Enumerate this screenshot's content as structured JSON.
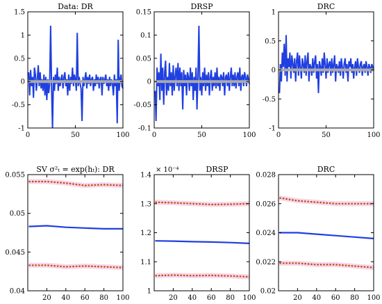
{
  "chart_data": [
    {
      "type": "line",
      "title": "Data: DR",
      "xlim": [
        0,
        100
      ],
      "ylim": [
        -1,
        1.5
      ],
      "xticks": [
        "0",
        "50",
        "100"
      ],
      "yticks": [
        "-1",
        "-0.5",
        "0",
        "0.5",
        "1",
        "1.5"
      ],
      "series": [
        {
          "color": "#1f3fe0",
          "style": "solid",
          "x": [
            1,
            2,
            3,
            4,
            5,
            6,
            7,
            8,
            9,
            10,
            11,
            12,
            13,
            14,
            15,
            16,
            17,
            18,
            19,
            20,
            21,
            22,
            23,
            24,
            25,
            26,
            27,
            28,
            29,
            30,
            31,
            32,
            33,
            34,
            35,
            36,
            37,
            38,
            39,
            40,
            41,
            42,
            43,
            44,
            45,
            46,
            47,
            48,
            49,
            50,
            51,
            52,
            53,
            54,
            55,
            56,
            57,
            58,
            59,
            60,
            61,
            62,
            63,
            64,
            65,
            66,
            67,
            68,
            69,
            70,
            71,
            72,
            73,
            74,
            75,
            76,
            77,
            78,
            79,
            80,
            81,
            82,
            83,
            84,
            85,
            86,
            87,
            88,
            89,
            90,
            91,
            92,
            93,
            94,
            95,
            96,
            97,
            98,
            99,
            100
          ],
          "y": [
            0.2,
            -0.3,
            0.25,
            -0.1,
            0.1,
            -0.35,
            0.3,
            0.15,
            -0.2,
            0.05,
            0.35,
            -0.1,
            0.2,
            -0.15,
            0.05,
            -0.2,
            0.15,
            -0.3,
            0.1,
            -0.4,
            0.05,
            -0.25,
            -0.05,
            1.2,
            -0.15,
            -1.0,
            0.1,
            -0.2,
            0.15,
            -0.05,
            0.3,
            -0.2,
            0.1,
            -0.1,
            0.05,
            0.15,
            -0.15,
            0.1,
            0.2,
            -0.1,
            0.05,
            -0.3,
            0.15,
            -0.2,
            0.1,
            -0.05,
            0.3,
            -0.1,
            0.15,
            0.05,
            -0.2,
            1.05,
            -0.1,
            0.1,
            -0.05,
            -0.15,
            -0.85,
            0.1,
            -0.1,
            0.05,
            0.2,
            -0.15,
            0.1,
            -0.05,
            0.15,
            -0.1,
            0.05,
            0.1,
            -0.2,
            0.05,
            -0.1,
            0.15,
            -0.05,
            0.1,
            -0.15,
            0.05,
            0.1,
            -0.3,
            0.1,
            -0.05,
            0.05,
            0.15,
            -0.1,
            0.05,
            -0.2,
            0.1,
            -0.1,
            0.05,
            -0.05,
            -0.3,
            0.15,
            -0.1,
            0.05,
            -0.9,
            0.9,
            -0.2,
            0.05,
            0.15,
            -0.1,
            -0.15
          ]
        },
        {
          "color": "#aaaaaa",
          "style": "thick",
          "x": [
            1,
            100
          ],
          "y": [
            0,
            0
          ]
        }
      ]
    },
    {
      "type": "line",
      "title": "DRSP",
      "xlim": [
        0,
        100
      ],
      "ylim": [
        -0.1,
        0.15
      ],
      "xticks": [
        "0",
        "50",
        "100"
      ],
      "yticks": [
        "-0.1",
        "-0.05",
        "0",
        "0.05",
        "0.1",
        "0.15"
      ],
      "series": [
        {
          "color": "#1f3fe0",
          "style": "solid",
          "x": [
            1,
            2,
            3,
            4,
            5,
            6,
            7,
            8,
            9,
            10,
            11,
            12,
            13,
            14,
            15,
            16,
            17,
            18,
            19,
            20,
            21,
            22,
            23,
            24,
            25,
            26,
            27,
            28,
            29,
            30,
            31,
            32,
            33,
            34,
            35,
            36,
            37,
            38,
            39,
            40,
            41,
            42,
            43,
            44,
            45,
            46,
            47,
            48,
            49,
            50,
            51,
            52,
            53,
            54,
            55,
            56,
            57,
            58,
            59,
            60,
            61,
            62,
            63,
            64,
            65,
            66,
            67,
            68,
            69,
            70,
            71,
            72,
            73,
            74,
            75,
            76,
            77,
            78,
            79,
            80,
            81,
            82,
            83,
            84,
            85,
            86,
            87,
            88,
            89,
            90,
            91,
            92,
            93,
            94,
            95,
            96,
            97,
            98,
            99,
            100
          ],
          "y": [
            -0.02,
            -0.085,
            0.03,
            -0.01,
            0.02,
            -0.04,
            0.06,
            -0.02,
            0.03,
            -0.05,
            0.02,
            0.045,
            -0.03,
            0.01,
            -0.02,
            0.04,
            -0.01,
            0.02,
            -0.03,
            0.035,
            -0.02,
            0.01,
            0.03,
            -0.01,
            0.04,
            -0.02,
            0.03,
            -0.01,
            0.02,
            -0.06,
            0.025,
            -0.01,
            0.015,
            -0.03,
            0.02,
            0.01,
            -0.02,
            0.03,
            -0.01,
            0.02,
            -0.04,
            0.01,
            -0.02,
            0.03,
            -0.06,
            0.01,
            0.12,
            -0.02,
            0.01,
            -0.03,
            0.02,
            -0.01,
            0.03,
            -0.02,
            0.015,
            -0.01,
            0.02,
            -0.03,
            0.01,
            0.025,
            -0.02,
            0.01,
            -0.01,
            0.02,
            -0.015,
            0.03,
            -0.01,
            0.01,
            -0.02,
            0.015,
            0.01,
            -0.01,
            0.02,
            -0.03,
            0.01,
            0.015,
            -0.01,
            0.02,
            -0.02,
            0.01,
            0.03,
            -0.01,
            0.015,
            -0.01,
            0.02,
            -0.015,
            0.01,
            0.02,
            -0.01,
            0.03,
            -0.02,
            0.01,
            0.015,
            -0.01,
            0.02,
            0.01,
            -0.01,
            0.015,
            0.005,
            -0.005
          ]
        },
        {
          "color": "#aaaaaa",
          "style": "thick",
          "x": [
            1,
            100
          ],
          "y": [
            0,
            0
          ]
        }
      ]
    },
    {
      "type": "line",
      "title": "DRC",
      "xlim": [
        0,
        100
      ],
      "ylim": [
        -1,
        1
      ],
      "xticks": [
        "0",
        "50",
        "100"
      ],
      "yticks": [
        "-1",
        "-0.5",
        "0",
        "0.5",
        "1"
      ],
      "series": [
        {
          "color": "#1f3fe0",
          "style": "solid",
          "x": [
            1,
            2,
            3,
            4,
            5,
            6,
            7,
            8,
            9,
            10,
            11,
            12,
            13,
            14,
            15,
            16,
            17,
            18,
            19,
            20,
            21,
            22,
            23,
            24,
            25,
            26,
            27,
            28,
            29,
            30,
            31,
            32,
            33,
            34,
            35,
            36,
            37,
            38,
            39,
            40,
            41,
            42,
            43,
            44,
            45,
            46,
            47,
            48,
            49,
            50,
            51,
            52,
            53,
            54,
            55,
            56,
            57,
            58,
            59,
            60,
            61,
            62,
            63,
            64,
            65,
            66,
            67,
            68,
            69,
            70,
            71,
            72,
            73,
            74,
            75,
            76,
            77,
            78,
            79,
            80,
            81,
            82,
            83,
            84,
            85,
            86,
            87,
            88,
            89,
            90,
            91,
            92,
            93,
            94,
            95,
            96,
            97,
            98,
            99,
            100
          ],
          "y": [
            -0.4,
            0.1,
            -0.2,
            0.3,
            0.05,
            0.45,
            -0.1,
            0.6,
            -0.2,
            0.2,
            0.05,
            0.3,
            -0.15,
            0.25,
            0.1,
            -0.05,
            0.2,
            -0.2,
            0.15,
            0.3,
            -0.1,
            0.25,
            0.05,
            -0.15,
            0.2,
            0.1,
            -0.05,
            0.25,
            -0.1,
            0.15,
            0.3,
            -0.2,
            0.1,
            0.05,
            -0.1,
            0.2,
            -0.05,
            0.15,
            0.25,
            -0.15,
            0.1,
            -0.4,
            0.15,
            0.05,
            -0.1,
            0.2,
            -0.05,
            0.3,
            0.1,
            -0.15,
            0.2,
            -0.05,
            0.1,
            0.15,
            -0.1,
            0.2,
            -0.05,
            0.1,
            0.25,
            -0.2,
            0.1,
            0.05,
            -0.05,
            0.15,
            -0.1,
            0.2,
            0.05,
            -0.15,
            0.1,
            0.2,
            -0.05,
            0.1,
            -0.2,
            0.15,
            0.05,
            0.2,
            -0.05,
            0.1,
            -0.15,
            0.05,
            0.15,
            -0.1,
            0.2,
            0.05,
            -0.05,
            0.1,
            0.15,
            -0.1,
            0.05,
            0.1,
            -0.05,
            0.15,
            0.05,
            -0.1,
            0.1,
            0.05,
            -0.05,
            0.1,
            0.05,
            0.0
          ]
        },
        {
          "color": "#aaaaaa",
          "style": "thick",
          "x": [
            1,
            100
          ],
          "y": [
            0,
            0
          ]
        }
      ]
    },
    {
      "type": "line",
      "title": "SV σ²ₜ = exp(hₜ): DR",
      "xlim": [
        0,
        100
      ],
      "ylim": [
        0.04,
        0.055
      ],
      "xticks": [
        "20",
        "40",
        "60",
        "80",
        "100"
      ],
      "yticks": [
        "0.04",
        "0.045",
        "0.05",
        "0.055"
      ],
      "series": [
        {
          "color": "#1f3fe0",
          "style": "solid",
          "x": [
            1,
            20,
            40,
            60,
            80,
            100
          ],
          "y": [
            0.0483,
            0.0484,
            0.0482,
            0.0481,
            0.048,
            0.048
          ]
        },
        {
          "color": "#c04a1a",
          "style": "dotted",
          "x": [
            1,
            20,
            40,
            60,
            80,
            100
          ],
          "y": [
            0.0541,
            0.0541,
            0.0539,
            0.0536,
            0.0537,
            0.0536
          ]
        },
        {
          "color": "#c04a1a",
          "style": "dotted",
          "x": [
            1,
            20,
            40,
            60,
            80,
            100
          ],
          "y": [
            0.0433,
            0.0433,
            0.0431,
            0.0432,
            0.0431,
            0.043
          ]
        }
      ]
    },
    {
      "type": "line",
      "title": "DRSP",
      "exponent": "× 10⁻⁴",
      "xlim": [
        0,
        100
      ],
      "ylim": [
        1.0,
        1.4
      ],
      "xticks": [
        "20",
        "40",
        "60",
        "80",
        "100"
      ],
      "yticks": [
        "1",
        "1.1",
        "1.2",
        "1.3",
        "1.4"
      ],
      "series": [
        {
          "color": "#1f3fe0",
          "style": "solid",
          "x": [
            1,
            20,
            40,
            60,
            80,
            100
          ],
          "y": [
            1.172,
            1.171,
            1.169,
            1.168,
            1.166,
            1.163
          ]
        },
        {
          "color": "#c04a1a",
          "style": "dotted",
          "x": [
            1,
            20,
            40,
            60,
            80,
            100
          ],
          "y": [
            1.305,
            1.303,
            1.3,
            1.297,
            1.298,
            1.3
          ]
        },
        {
          "color": "#c04a1a",
          "style": "dotted",
          "x": [
            1,
            20,
            40,
            60,
            80,
            100
          ],
          "y": [
            1.052,
            1.054,
            1.052,
            1.053,
            1.051,
            1.048
          ]
        }
      ]
    },
    {
      "type": "line",
      "title": "DRC",
      "xlim": [
        0,
        100
      ],
      "ylim": [
        0.02,
        0.028
      ],
      "xticks": [
        "20",
        "40",
        "60",
        "80",
        "100"
      ],
      "yticks": [
        "0.02",
        "0.022",
        "0.024",
        "0.026",
        "0.028"
      ],
      "series": [
        {
          "color": "#1f3fe0",
          "style": "solid",
          "x": [
            1,
            20,
            40,
            60,
            80,
            100
          ],
          "y": [
            0.024,
            0.024,
            0.0239,
            0.0238,
            0.0237,
            0.0236
          ]
        },
        {
          "color": "#c04a1a",
          "style": "dotted",
          "x": [
            1,
            20,
            40,
            60,
            80,
            100
          ],
          "y": [
            0.0264,
            0.0262,
            0.0261,
            0.026,
            0.026,
            0.026
          ]
        },
        {
          "color": "#c04a1a",
          "style": "dotted",
          "x": [
            1,
            20,
            40,
            60,
            80,
            100
          ],
          "y": [
            0.0219,
            0.0219,
            0.0218,
            0.0218,
            0.0217,
            0.0216
          ]
        }
      ]
    }
  ]
}
